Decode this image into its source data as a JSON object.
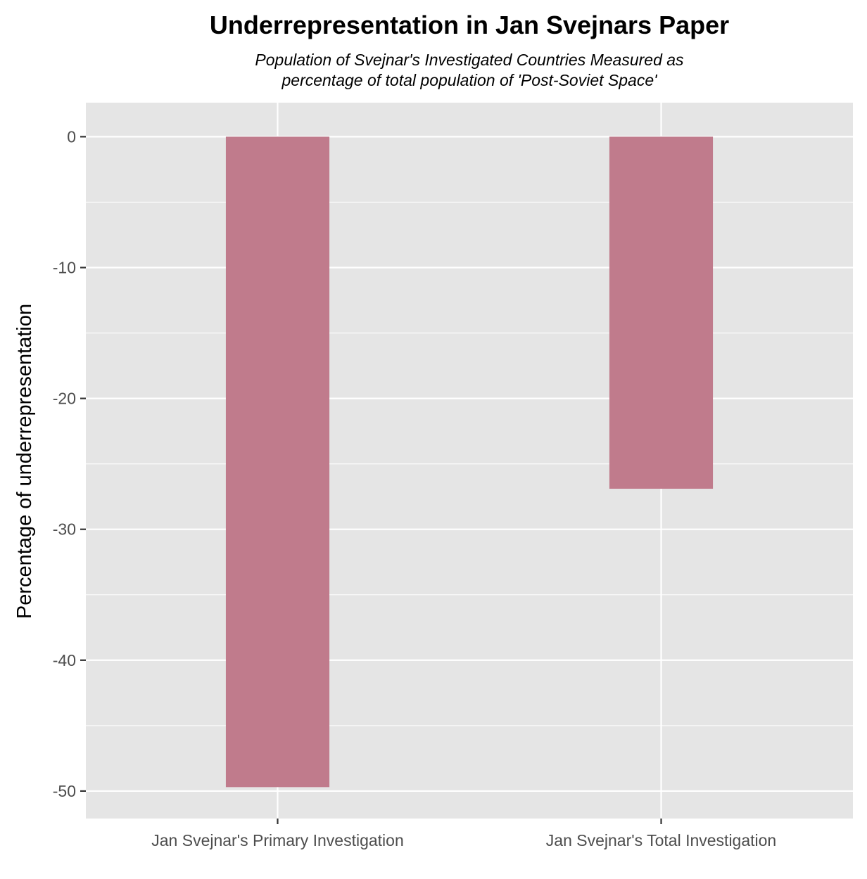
{
  "chart_data": {
    "type": "bar",
    "title": "Underrepresentation in Jan Svejnars Paper",
    "subtitle_lines": [
      "Population of Svejnar's Investigated Countries Measured as",
      "percentage of total population of 'Post-Soviet Space'"
    ],
    "xlabel": "",
    "ylabel": "Percentage of underrepresentation",
    "categories": [
      "Jan Svejnar's Primary Investigation",
      "Jan Svejnar's Total Investigation"
    ],
    "values": [
      -49.7,
      -26.9
    ],
    "ylim": [
      -52.1,
      2.6
    ],
    "yticks": [
      0,
      -10,
      -20,
      -30,
      -40,
      -50
    ],
    "grid": true,
    "legend": "none",
    "colors": {
      "bar": "#c07b8c",
      "panel_background": "#e5e5e5",
      "grid_line": "#ffffff",
      "tick_text": "#4d4d4d"
    }
  }
}
